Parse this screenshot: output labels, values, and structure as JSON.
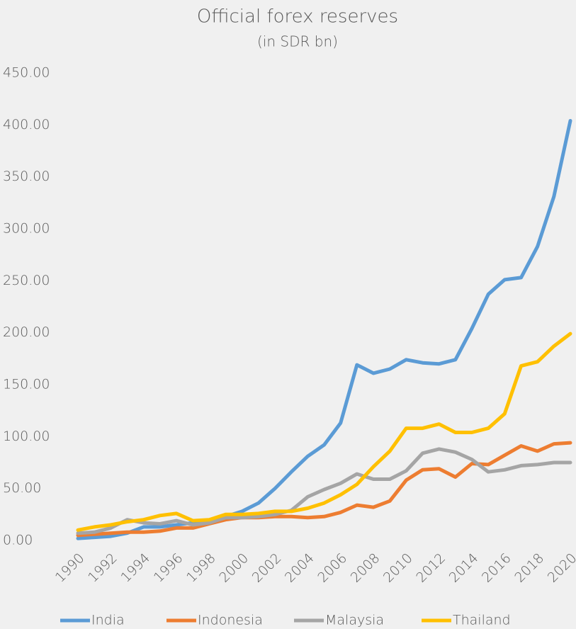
{
  "chart_data": {
    "type": "line",
    "title": "Official forex reserves",
    "subtitle": "(in SDR bn)",
    "x": [
      1990,
      1991,
      1992,
      1993,
      1994,
      1995,
      1996,
      1997,
      1998,
      1999,
      2000,
      2001,
      2002,
      2003,
      2004,
      2005,
      2006,
      2007,
      2008,
      2009,
      2010,
      2011,
      2012,
      2013,
      2014,
      2015,
      2016,
      2017,
      2018,
      2019,
      2020
    ],
    "xlim": [
      1990,
      2020
    ],
    "xticks": [
      1990,
      1992,
      1994,
      1996,
      1998,
      2000,
      2002,
      2004,
      2006,
      2008,
      2010,
      2012,
      2014,
      2016,
      2018,
      2020
    ],
    "ylim": [
      0,
      450
    ],
    "yticks": [
      {
        "value": 0,
        "label": "0.00"
      },
      {
        "value": 50,
        "label": "50.00"
      },
      {
        "value": 100,
        "label": "100.00"
      },
      {
        "value": 150,
        "label": "150.00"
      },
      {
        "value": 200,
        "label": "200.00"
      },
      {
        "value": 250,
        "label": "250.00"
      },
      {
        "value": 300,
        "label": "300.00"
      },
      {
        "value": 350,
        "label": "350.00"
      },
      {
        "value": 400,
        "label": "400.00"
      },
      {
        "value": 450,
        "label": "450.00"
      }
    ],
    "grid": false,
    "legend": "bottom",
    "series": [
      {
        "name": "India",
        "color": "#5b9bd5",
        "values": [
          2,
          3,
          4,
          7,
          13,
          13,
          15,
          17,
          18,
          23,
          28,
          36,
          50,
          66,
          81,
          92,
          113,
          169,
          161,
          165,
          174,
          171,
          170,
          174,
          204,
          237,
          251,
          253,
          283,
          331,
          404
        ]
      },
      {
        "name": "Indonesia",
        "color": "#ed7d31",
        "values": [
          5,
          6,
          7,
          8,
          8,
          9,
          12,
          12,
          16,
          20,
          22,
          22,
          23,
          23,
          22,
          23,
          27,
          34,
          32,
          38,
          58,
          68,
          69,
          61,
          74,
          73,
          82,
          91,
          86,
          93,
          94
        ]
      },
      {
        "name": "Malaysia",
        "color": "#a5a5a5",
        "values": [
          7,
          8,
          12,
          20,
          17,
          16,
          19,
          15,
          17,
          22,
          22,
          23,
          25,
          29,
          42,
          49,
          55,
          64,
          59,
          59,
          67,
          84,
          88,
          85,
          78,
          66,
          68,
          72,
          73,
          75,
          75
        ]
      },
      {
        "name": "Thailand",
        "color": "#ffc000",
        "values": [
          10,
          13,
          15,
          18,
          20,
          24,
          26,
          19,
          20,
          25,
          25,
          26,
          28,
          28,
          31,
          36,
          44,
          54,
          71,
          86,
          108,
          108,
          112,
          104,
          104,
          108,
          122,
          168,
          172,
          187,
          199
        ]
      }
    ]
  }
}
